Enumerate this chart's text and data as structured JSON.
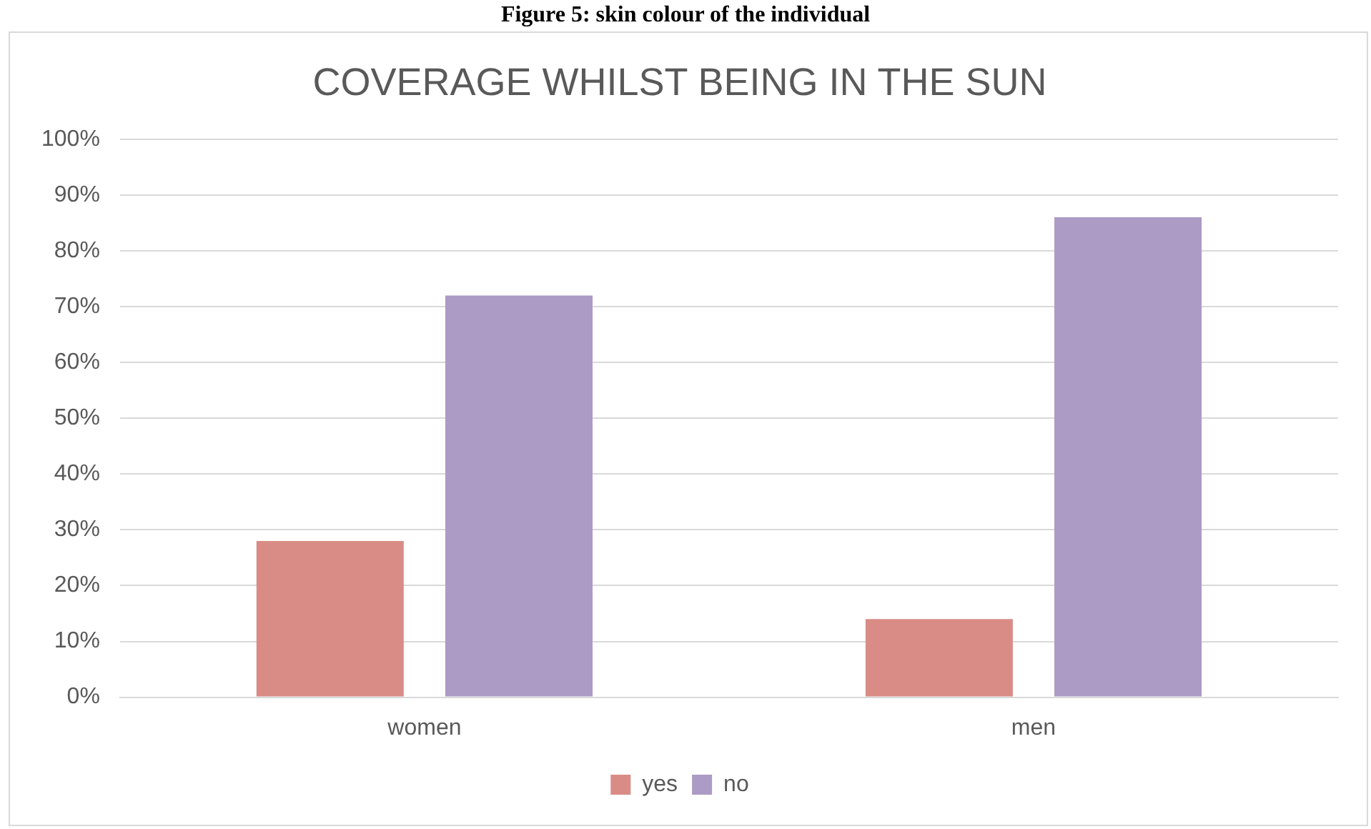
{
  "chart_data": {
    "type": "bar",
    "title": "COVERAGE WHILST BEING IN THE SUN",
    "annotations": [
      "Figure 5: skin colour of the individual"
    ],
    "categories": [
      "women",
      "men"
    ],
    "series": [
      {
        "name": "yes",
        "color": "#d98c86",
        "values": [
          28,
          14
        ]
      },
      {
        "name": "no",
        "color": "#ac9bc4",
        "values": [
          72,
          86
        ]
      }
    ],
    "ylim": [
      0,
      100
    ],
    "yticks": [
      {
        "value": 0,
        "label": "0%"
      },
      {
        "value": 10,
        "label": "10%"
      },
      {
        "value": 20,
        "label": "20%"
      },
      {
        "value": 30,
        "label": "30%"
      },
      {
        "value": 40,
        "label": "40%"
      },
      {
        "value": 50,
        "label": "50%"
      },
      {
        "value": 60,
        "label": "60%"
      },
      {
        "value": 70,
        "label": "70%"
      },
      {
        "value": 80,
        "label": "80%"
      },
      {
        "value": 90,
        "label": "90%"
      },
      {
        "value": 100,
        "label": "100%"
      }
    ],
    "grid": "y",
    "legend": "bottom"
  }
}
